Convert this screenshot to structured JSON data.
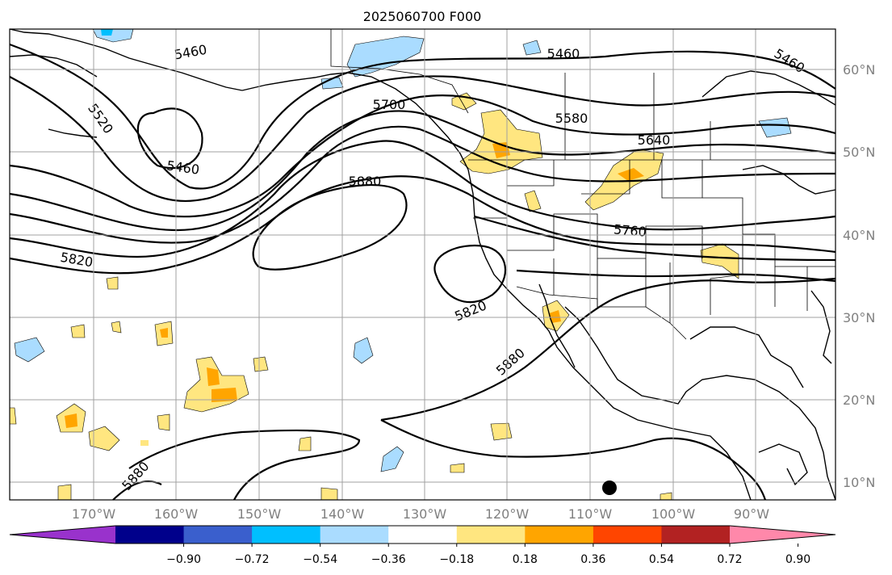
{
  "title": "2025060700 F000",
  "lat_labels": [
    "60°N",
    "50°N",
    "40°N",
    "30°N",
    "20°N",
    "10°N"
  ],
  "lon_labels": [
    "170°W",
    "160°W",
    "150°W",
    "140°W",
    "130°W",
    "120°W",
    "110°W",
    "100°W",
    "90°W"
  ],
  "contour_labels": [
    "5460",
    "5460",
    "5460",
    "5460",
    "5520",
    "5580",
    "5640",
    "5700",
    "5760",
    "5820",
    "5820",
    "5880",
    "5880",
    "5880"
  ],
  "colorbar": {
    "ticks": [
      "−0.90",
      "−0.72",
      "−0.54",
      "−0.36",
      "−0.18",
      "0.18",
      "0.36",
      "0.54",
      "0.72",
      "0.90"
    ],
    "colors": [
      "#9932cc",
      "#00008b",
      "#3a5fcd",
      "#00bfff",
      "#aadcff",
      "#ffffff",
      "#ffe680",
      "#ffa500",
      "#ff4500",
      "#b22222",
      "#ff88aa"
    ]
  }
}
